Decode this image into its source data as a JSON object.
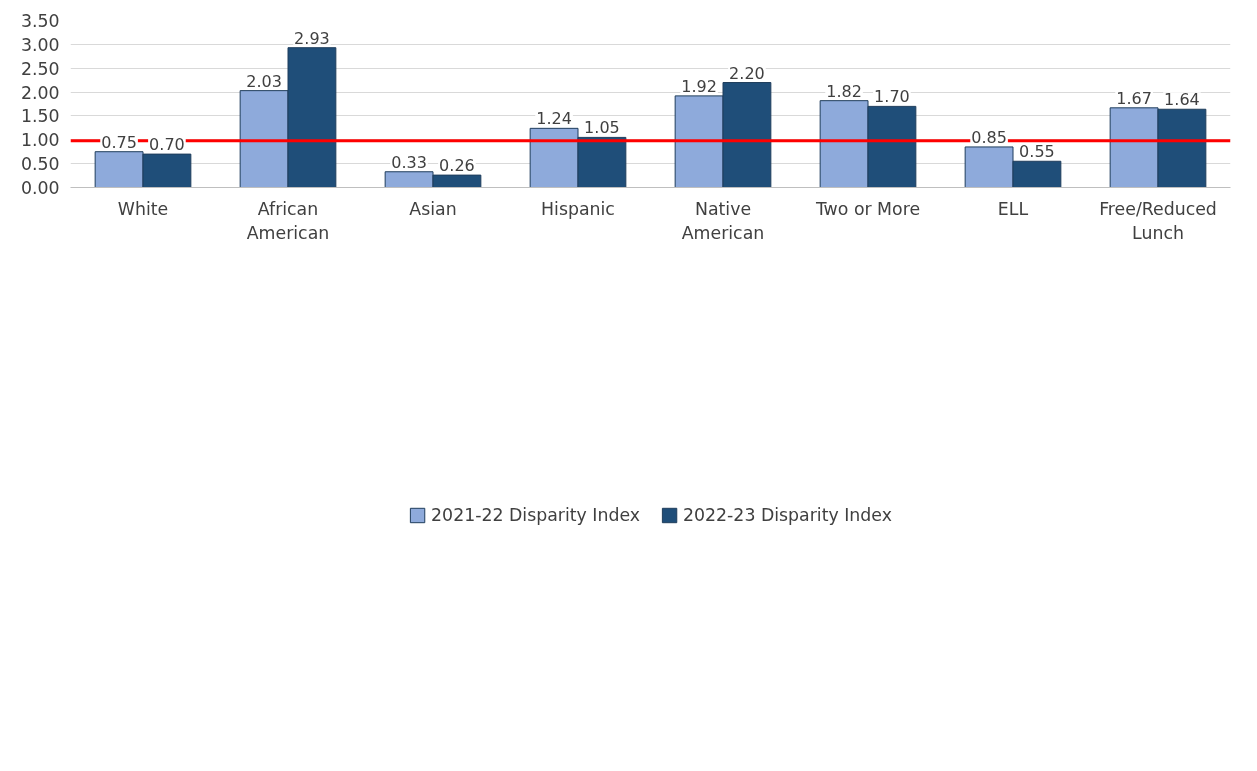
{
  "chart_data": {
    "type": "bar",
    "categories": [
      "White",
      "African\nAmerican",
      "Asian",
      "Hispanic",
      "Native\nAmerican",
      "Two or More",
      "ELL",
      "Free/Reduced\nLunch"
    ],
    "series": [
      {
        "name": "2021-22 Disparity Index",
        "color": "#8eaadb",
        "values": [
          0.75,
          2.03,
          0.33,
          1.24,
          1.92,
          1.82,
          0.85,
          1.67
        ],
        "value_labels": [
          "0.75",
          "2.03",
          "0.33",
          "1.24",
          "1.92",
          "1.82",
          "0.85",
          "1.67"
        ]
      },
      {
        "name": "2022-23 Disparity Index",
        "color": "#1f4e79",
        "values": [
          0.7,
          2.93,
          0.26,
          1.05,
          2.2,
          1.7,
          0.55,
          1.64
        ],
        "value_labels": [
          "0.70",
          "2.93",
          "0.26",
          "1.05",
          "2.20",
          "1.70",
          "0.55",
          "1.64"
        ]
      }
    ],
    "ylim": [
      0,
      3.5
    ],
    "yticks": [
      {
        "value": 0,
        "label": "0.00"
      },
      {
        "value": 0.5,
        "label": "0.50"
      },
      {
        "value": 1,
        "label": "1.00"
      },
      {
        "value": 1.5,
        "label": "1.50"
      },
      {
        "value": 2,
        "label": "2.00"
      },
      {
        "value": 2.5,
        "label": "2.50"
      },
      {
        "value": 3,
        "label": "3.00"
      },
      {
        "value": 3.5,
        "label": "3.50"
      }
    ],
    "ref_lines": [
      {
        "axis": "y",
        "value": 0.98,
        "color": "#ff0000"
      }
    ],
    "grid": "y",
    "legend": "bottom"
  }
}
